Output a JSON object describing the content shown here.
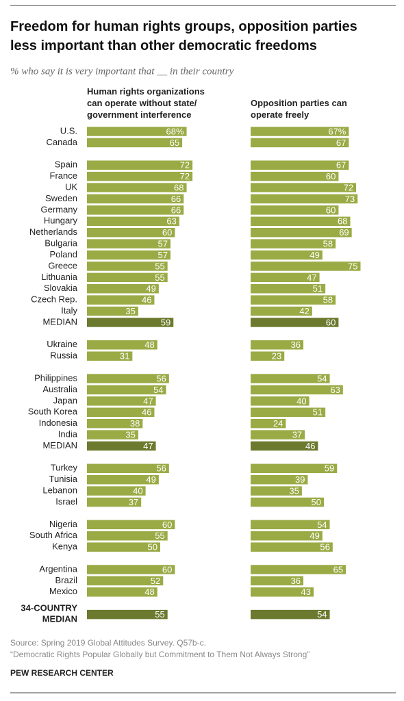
{
  "chart_data": {
    "type": "bar",
    "title": "Freedom for human rights groups, opposition parties less important than other democratic freedoms",
    "subtitle": "% who say it is very important that __ in their country",
    "categories": [
      "U.S.",
      "Canada",
      null,
      "Spain",
      "France",
      "UK",
      "Sweden",
      "Germany",
      "Hungary",
      "Netherlands",
      "Bulgaria",
      "Poland",
      "Greece",
      "Lithuania",
      "Slovakia",
      "Czech Rep.",
      "Italy",
      "MEDIAN",
      null,
      "Ukraine",
      "Russia",
      null,
      "Philippines",
      "Australia",
      "Japan",
      "South Korea",
      "Indonesia",
      "India",
      "MEDIAN",
      null,
      "Turkey",
      "Tunisia",
      "Lebanon",
      "Israel",
      null,
      "Nigeria",
      "South Africa",
      "Kenya",
      null,
      "Argentina",
      "Brazil",
      "Mexico",
      null,
      "34-COUNTRY MEDIAN"
    ],
    "median_color": "#6b7a2e",
    "series": [
      {
        "name": "Human rights organizations can operate without state/ government interference",
        "color": "#9aab46",
        "values": [
          68,
          65,
          null,
          72,
          72,
          68,
          66,
          66,
          63,
          60,
          57,
          57,
          55,
          55,
          49,
          46,
          35,
          59,
          null,
          48,
          31,
          null,
          56,
          54,
          47,
          46,
          38,
          35,
          47,
          null,
          56,
          49,
          40,
          37,
          null,
          60,
          55,
          50,
          null,
          60,
          52,
          48,
          null,
          55
        ],
        "value_labels": [
          "68%",
          null,
          null,
          null,
          null,
          null,
          null,
          null,
          null,
          null,
          null,
          null,
          null,
          null,
          null,
          null,
          null,
          null,
          null,
          null,
          null,
          null,
          null,
          null,
          null,
          null,
          null,
          null,
          null,
          null,
          null,
          null,
          null,
          null,
          null,
          null,
          null,
          null,
          null,
          null,
          null,
          null,
          null,
          null
        ]
      },
      {
        "name": "Opposition parties can operate freely",
        "color": "#9aab46",
        "values": [
          67,
          67,
          null,
          67,
          60,
          72,
          73,
          60,
          68,
          69,
          58,
          49,
          75,
          47,
          51,
          58,
          42,
          60,
          null,
          36,
          23,
          null,
          54,
          63,
          40,
          51,
          24,
          37,
          46,
          null,
          59,
          39,
          35,
          50,
          null,
          54,
          49,
          56,
          null,
          65,
          36,
          43,
          null,
          54
        ],
        "value_labels": [
          "67%",
          null,
          null,
          null,
          null,
          null,
          null,
          null,
          null,
          null,
          null,
          null,
          null,
          null,
          null,
          null,
          null,
          null,
          null,
          null,
          null,
          null,
          null,
          null,
          null,
          null,
          null,
          null,
          null,
          null,
          null,
          null,
          null,
          null,
          null,
          null,
          null,
          null,
          null,
          null,
          null,
          null,
          null,
          null
        ]
      }
    ],
    "source": "Source: Spring 2019 Global Attitudes Survey. Q57b-c.",
    "note": "“Democratic Rights Popular Globally but Commitment to Them Not Always Strong”",
    "credit": "PEW RESEARCH CENTER"
  }
}
